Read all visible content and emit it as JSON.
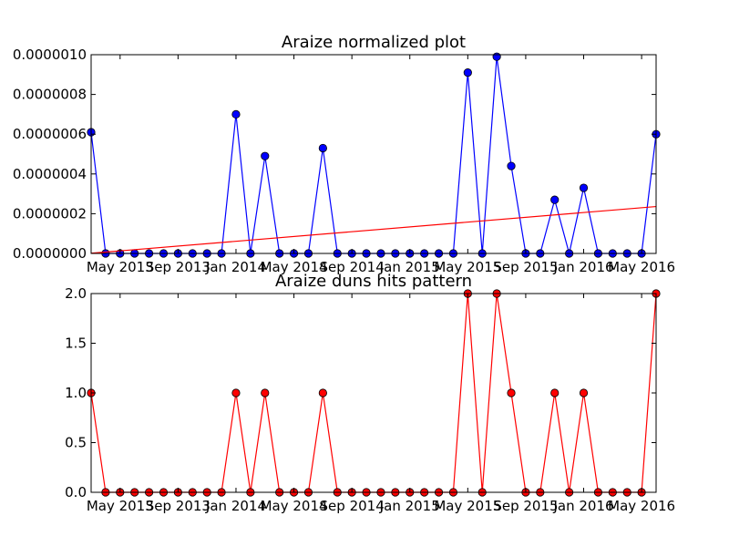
{
  "chart_data": [
    {
      "type": "line",
      "title": "Araize normalized plot",
      "xlabel": "",
      "ylabel": "",
      "x_start": "2013-03",
      "x_end": "2016-06",
      "x_ticks": [
        {
          "date": "2013-05",
          "label": "May 2013"
        },
        {
          "date": "2013-09",
          "label": "Sep 2013"
        },
        {
          "date": "2014-01",
          "label": "Jan 2014"
        },
        {
          "date": "2014-05",
          "label": "May 2014"
        },
        {
          "date": "2014-09",
          "label": "Sep 2014"
        },
        {
          "date": "2015-01",
          "label": "Jan 2015"
        },
        {
          "date": "2015-05",
          "label": "May 2015"
        },
        {
          "date": "2015-09",
          "label": "Sep 2015"
        },
        {
          "date": "2016-01",
          "label": "Jan 2016"
        },
        {
          "date": "2016-05",
          "label": "May 2016"
        }
      ],
      "ylim": [
        0,
        1e-06
      ],
      "y_ticks": [
        {
          "value": 0,
          "label": "0.0000000"
        },
        {
          "value": 2e-07,
          "label": "0.0000002"
        },
        {
          "value": 4e-07,
          "label": "0.0000004"
        },
        {
          "value": 6e-07,
          "label": "0.0000006"
        },
        {
          "value": 8e-07,
          "label": "0.0000008"
        },
        {
          "value": 1e-06,
          "label": "0.0000010"
        }
      ],
      "grid": false,
      "legend": "none",
      "series": [
        {
          "color": "#0000ff",
          "marker": "circle",
          "x": [
            "2013-03",
            "2013-04",
            "2013-05",
            "2013-06",
            "2013-07",
            "2013-08",
            "2013-09",
            "2013-10",
            "2013-11",
            "2013-12",
            "2014-01",
            "2014-02",
            "2014-03",
            "2014-04",
            "2014-05",
            "2014-06",
            "2014-07",
            "2014-08",
            "2014-09",
            "2014-10",
            "2014-11",
            "2014-12",
            "2015-01",
            "2015-02",
            "2015-03",
            "2015-04",
            "2015-05",
            "2015-06",
            "2015-07",
            "2015-08",
            "2015-09",
            "2015-10",
            "2015-11",
            "2015-12",
            "2016-01",
            "2016-02",
            "2016-03",
            "2016-04",
            "2016-05",
            "2016-06"
          ],
          "values": [
            6.1e-07,
            0,
            0,
            0,
            0,
            0,
            0,
            0,
            0,
            0,
            7e-07,
            0,
            4.9e-07,
            0,
            0,
            0,
            5.3e-07,
            0,
            0,
            0,
            0,
            0,
            0,
            0,
            0,
            0,
            9.1e-07,
            0,
            9.9e-07,
            4.4e-07,
            0,
            0,
            2.7e-07,
            0,
            3.3e-07,
            0,
            0,
            0,
            0,
            6e-07
          ]
        },
        {
          "color": "#ff0000",
          "marker": "none",
          "x": [
            "2013-03",
            "2016-06"
          ],
          "values": [
            1e-09,
            2.36e-07
          ]
        }
      ]
    },
    {
      "type": "line",
      "title": "Araize duns hits pattern",
      "xlabel": "",
      "ylabel": "",
      "x_start": "2013-03",
      "x_end": "2016-06",
      "x_ticks": [
        {
          "date": "2013-05",
          "label": "May 2013"
        },
        {
          "date": "2013-09",
          "label": "Sep 2013"
        },
        {
          "date": "2014-01",
          "label": "Jan 2014"
        },
        {
          "date": "2014-05",
          "label": "May 2014"
        },
        {
          "date": "2014-09",
          "label": "Sep 2014"
        },
        {
          "date": "2015-01",
          "label": "Jan 2015"
        },
        {
          "date": "2015-05",
          "label": "May 2015"
        },
        {
          "date": "2015-09",
          "label": "Sep 2015"
        },
        {
          "date": "2016-01",
          "label": "Jan 2016"
        },
        {
          "date": "2016-05",
          "label": "May 2016"
        }
      ],
      "ylim": [
        0,
        2
      ],
      "y_ticks": [
        {
          "value": 0,
          "label": "0.0"
        },
        {
          "value": 0.5,
          "label": "0.5"
        },
        {
          "value": 1,
          "label": "1.0"
        },
        {
          "value": 1.5,
          "label": "1.5"
        },
        {
          "value": 2,
          "label": "2.0"
        }
      ],
      "grid": false,
      "legend": "none",
      "series": [
        {
          "color": "#ff0000",
          "marker": "circle",
          "x": [
            "2013-03",
            "2013-04",
            "2013-05",
            "2013-06",
            "2013-07",
            "2013-08",
            "2013-09",
            "2013-10",
            "2013-11",
            "2013-12",
            "2014-01",
            "2014-02",
            "2014-03",
            "2014-04",
            "2014-05",
            "2014-06",
            "2014-07",
            "2014-08",
            "2014-09",
            "2014-10",
            "2014-11",
            "2014-12",
            "2015-01",
            "2015-02",
            "2015-03",
            "2015-04",
            "2015-05",
            "2015-06",
            "2015-07",
            "2015-08",
            "2015-09",
            "2015-10",
            "2015-11",
            "2015-12",
            "2016-01",
            "2016-02",
            "2016-03",
            "2016-04",
            "2016-05",
            "2016-06"
          ],
          "values": [
            1,
            0,
            0,
            0,
            0,
            0,
            0,
            0,
            0,
            0,
            1,
            0,
            1,
            0,
            0,
            0,
            1,
            0,
            0,
            0,
            0,
            0,
            0,
            0,
            0,
            0,
            2,
            0,
            2,
            1,
            0,
            0,
            1,
            0,
            1,
            0,
            0,
            0,
            0,
            2
          ]
        }
      ]
    }
  ]
}
